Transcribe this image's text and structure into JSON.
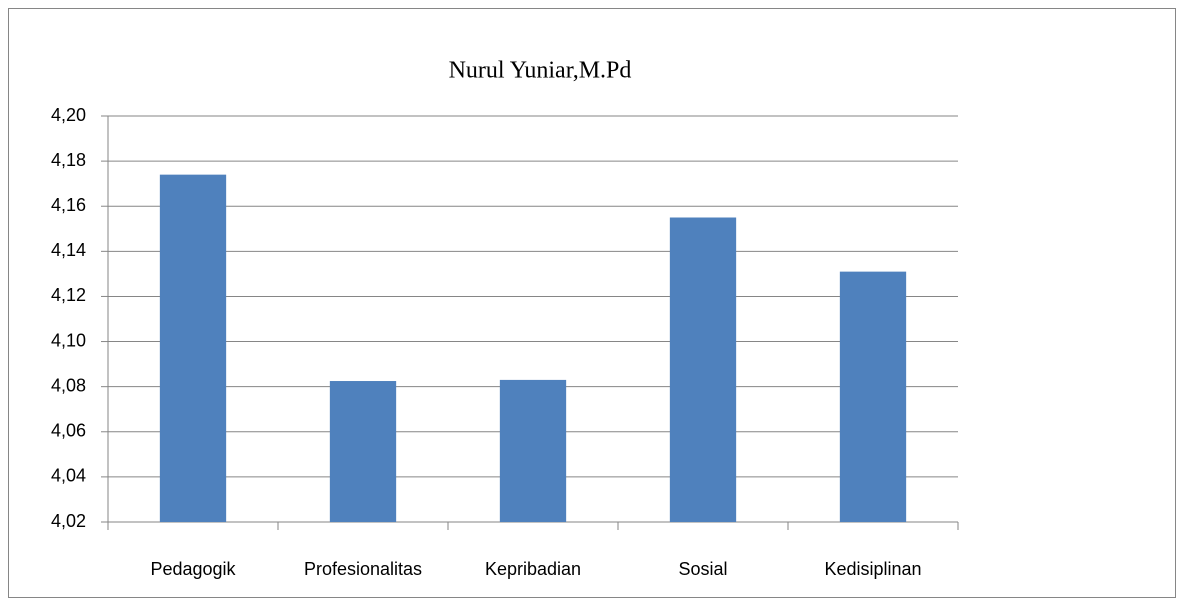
{
  "chart_data": {
    "type": "bar",
    "title": "Nurul Yuniar,M.Pd",
    "categories": [
      "Pedagogik",
      "Profesionalitas",
      "Kepribadian",
      "Sosial",
      "Kedisiplinan"
    ],
    "values": [
      4.174,
      4.0825,
      4.083,
      4.155,
      4.131
    ],
    "color": "#4f81bd",
    "ylim": [
      4.02,
      4.2
    ],
    "yticks": [
      {
        "value": 4.02,
        "label": "4,02"
      },
      {
        "value": 4.04,
        "label": "4,04"
      },
      {
        "value": 4.06,
        "label": "4,06"
      },
      {
        "value": 4.08,
        "label": "4,08"
      },
      {
        "value": 4.1,
        "label": "4,10"
      },
      {
        "value": 4.12,
        "label": "4,12"
      },
      {
        "value": 4.14,
        "label": "4,14"
      },
      {
        "value": 4.16,
        "label": "4,16"
      },
      {
        "value": 4.18,
        "label": "4,18"
      },
      {
        "value": 4.2,
        "label": "4,20"
      }
    ],
    "grid": true
  }
}
